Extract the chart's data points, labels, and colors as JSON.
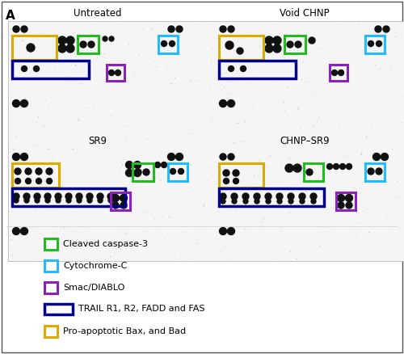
{
  "title_A": "A",
  "background_color": "#ffffff",
  "legend_items": [
    {
      "label": "Cleaved caspase-3",
      "color": "#22bb22",
      "lw": 2.2,
      "wide": false
    },
    {
      "label": "Cytochrome-C",
      "color": "#22bbff",
      "lw": 2.2,
      "wide": false
    },
    {
      "label": "Smac/DIABLO",
      "color": "#8822bb",
      "lw": 2.2,
      "wide": false
    },
    {
      "label": "TRAIL R1, R2, FADD and FAS",
      "color": "#00008b",
      "lw": 2.5,
      "wide": true
    },
    {
      "label": "Pro-apoptotic Bax, and Bad",
      "color": "#ddaa00",
      "lw": 2.2,
      "wide": false
    }
  ],
  "dot_color": "#111111",
  "panels": [
    {
      "title": "Untreated",
      "col": 0,
      "row": 0
    },
    {
      "title": "Void CHNP",
      "col": 1,
      "row": 0
    },
    {
      "title": "SR9",
      "col": 0,
      "row": 1
    },
    {
      "title": "CHNP–SR9",
      "col": 1,
      "row": 1
    }
  ]
}
